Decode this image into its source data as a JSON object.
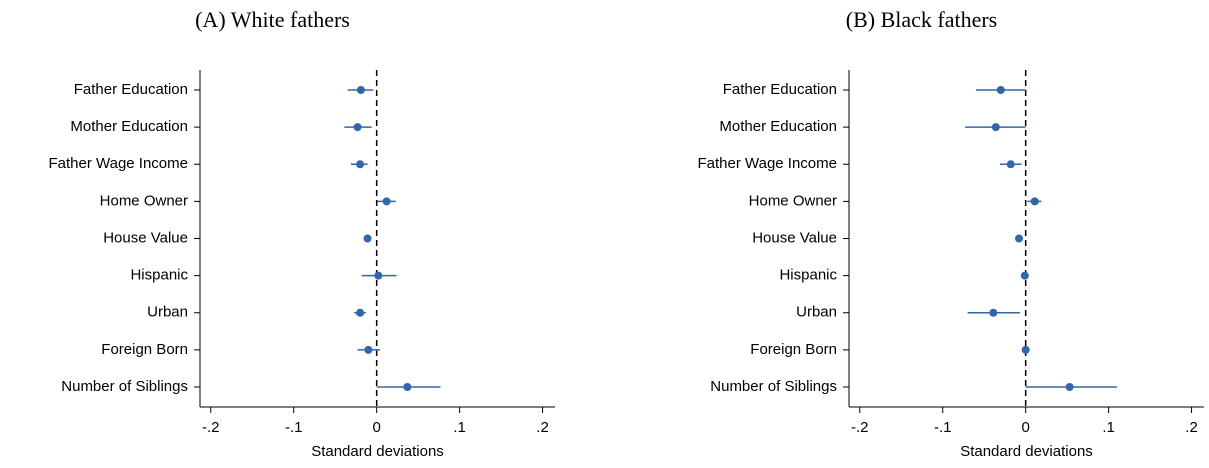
{
  "chart_data": [
    {
      "type": "coefplot",
      "title": "(A) White fathers",
      "xlabel": "Standard deviations",
      "categories": [
        "Father Education",
        "Mother Education",
        "Father Wage Income",
        "Home Owner",
        "House Value",
        "Hispanic",
        "Urban",
        "Foreign Born",
        "Number of Siblings"
      ],
      "values": [
        -0.019,
        -0.023,
        -0.02,
        0.012,
        -0.011,
        0.002,
        -0.02,
        -0.01,
        0.037
      ],
      "lower": [
        -0.035,
        -0.039,
        -0.031,
        0.001,
        -0.014,
        -0.018,
        -0.027,
        -0.023,
        0
      ],
      "upper": [
        -0.004,
        -0.006,
        -0.011,
        0.023,
        -0.007,
        0.024,
        -0.013,
        0.004,
        0.077
      ],
      "color": "#3366a8",
      "xline": 0,
      "xlim": [
        -0.213,
        0.215
      ],
      "xticks": [
        {
          "value": -0.2,
          "label": "-.2"
        },
        {
          "value": -0.1,
          "label": "-.1"
        },
        0,
        {
          "value": 0.1,
          "label": ".1"
        },
        {
          "value": 0.2,
          "label": ".2"
        }
      ]
    },
    {
      "type": "coefplot",
      "title": "(B) Black fathers",
      "xlabel": "Standard deviations",
      "categories": [
        "Father Education",
        "Mother Education",
        "Father Wage Income",
        "Home Owner",
        "House Value",
        "Hispanic",
        "Urban",
        "Foreign Born",
        "Number of Siblings"
      ],
      "values": [
        -0.03,
        -0.036,
        -0.018,
        0.011,
        -0.008,
        -0.001,
        -0.039,
        0,
        0.053
      ],
      "lower": [
        -0.06,
        -0.073,
        -0.031,
        0.002,
        -0.011,
        -0.004,
        -0.07,
        -0.003,
        0
      ],
      "upper": [
        0,
        0,
        -0.005,
        0.019,
        -0.005,
        0.002,
        -0.007,
        0.003,
        0.11
      ],
      "color": "#3366a8",
      "xline": 0,
      "xlim": [
        -0.213,
        0.215
      ],
      "xticks": [
        {
          "value": -0.2,
          "label": "-.2"
        },
        {
          "value": -0.1,
          "label": "-.1"
        },
        0,
        {
          "value": 0.1,
          "label": ".1"
        },
        {
          "value": 0.2,
          "label": ".2"
        }
      ]
    }
  ]
}
